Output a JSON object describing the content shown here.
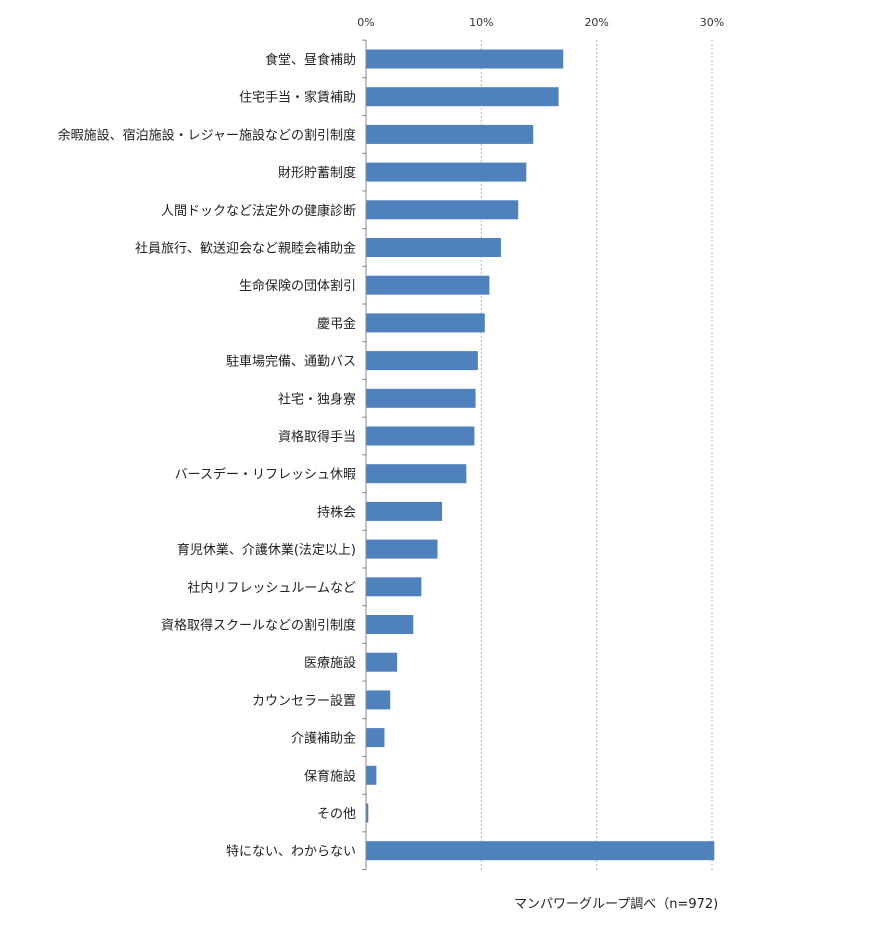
{
  "chart_data": {
    "type": "bar",
    "orientation": "horizontal",
    "title": "",
    "xlabel": "",
    "ylabel": "",
    "xlim": [
      0,
      30
    ],
    "xticks": [
      0,
      10,
      20,
      30
    ],
    "xtick_labels": [
      "0%",
      "10%",
      "20%",
      "30%"
    ],
    "tick_position": "top",
    "grid": true,
    "bar_color": "#4F81BD",
    "categories": [
      "食堂、昼食補助",
      "住宅手当・家賃補助",
      "余暇施設、宿泊施設・レジャー施設などの割引制度",
      "財形貯蓄制度",
      "人間ドックなど法定外の健康診断",
      "社員旅行、歓送迎会など親睦会補助金",
      "生命保険の団体割引",
      "慶弔金",
      "駐車場完備、通勤バス",
      "社宅・独身寮",
      "資格取得手当",
      "バースデー・リフレッシュ休暇",
      "持株会",
      "育児休業、介護休業(法定以上)",
      "社内リフレッシュルームなど",
      "資格取得スクールなどの割引制度",
      "医療施設",
      "カウンセラー設置",
      "介護補助金",
      "保育施設",
      "その他",
      "特にない、わからない"
    ],
    "values": [
      17.1,
      16.7,
      14.5,
      13.9,
      13.2,
      11.7,
      10.7,
      10.3,
      9.7,
      9.5,
      9.4,
      8.7,
      6.6,
      6.2,
      4.8,
      4.1,
      2.7,
      2.1,
      1.6,
      0.9,
      0.2,
      30.2
    ]
  },
  "source_note": "マンパワーグループ調べ（n=972)"
}
